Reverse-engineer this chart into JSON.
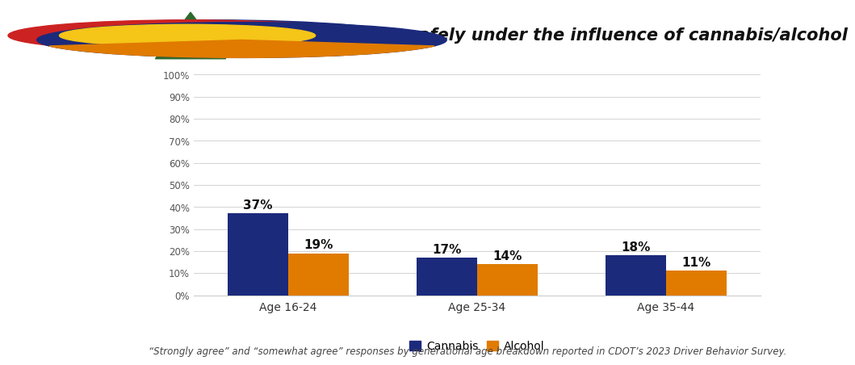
{
  "title": "I can drive safely under the influence of cannabis/alcohol",
  "categories": [
    "Age 16-24",
    "Age 25-34",
    "Age 35-44"
  ],
  "cannabis_values": [
    37,
    17,
    18
  ],
  "alcohol_values": [
    19,
    14,
    11
  ],
  "cannabis_color": "#1b2a7b",
  "alcohol_color": "#e07b00",
  "bar_labels_cannabis": [
    "37%",
    "17%",
    "18%"
  ],
  "bar_labels_alcohol": [
    "19%",
    "14%",
    "11%"
  ],
  "ylim": [
    0,
    100
  ],
  "yticks": [
    0,
    10,
    20,
    30,
    40,
    50,
    60,
    70,
    80,
    90,
    100
  ],
  "ytick_labels": [
    "0%",
    "10%",
    "20%",
    "30%",
    "40%",
    "50%",
    "60%",
    "70%",
    "80%",
    "90%",
    "100%"
  ],
  "legend_labels": [
    "Cannabis",
    "Alcohol"
  ],
  "footer_text": "“Strongly agree” and “somewhat agree” responses by generational age breakdown reported in CDOT’s 2023 Driver Behavior Survey.",
  "header_bg_color": "#ebebeb",
  "chart_bg_color": "#ffffff",
  "header_line_color": "#e07b00",
  "title_color": "#111111",
  "title_fontsize": 15,
  "bar_label_fontsize": 11,
  "footer_fontsize": 8.5,
  "legend_fontsize": 10,
  "bar_width": 0.32
}
